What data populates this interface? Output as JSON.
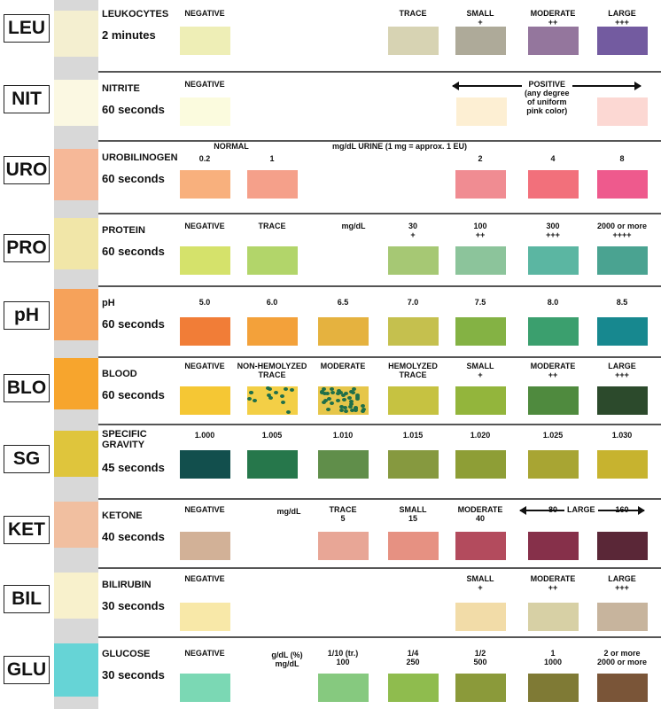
{
  "rows": [
    {
      "abbr": "LEU",
      "name": "LEUKOCYTES",
      "time": "2 minutes",
      "strip_color": "#f4efd0",
      "swatches": [
        {
          "label": "NEGATIVE",
          "color": "#eeeeb6"
        },
        {
          "label": "TRACE",
          "color": "#d7d3b3"
        },
        {
          "label": "SMALL\n+",
          "color": "#aeaa99"
        },
        {
          "label": "MODERATE\n++",
          "color": "#94769d"
        },
        {
          "label": "LARGE\n+++",
          "color": "#735ba0"
        }
      ]
    },
    {
      "abbr": "NIT",
      "name": "NITRITE",
      "time": "60 seconds",
      "strip_color": "#fbf8e2",
      "note": "POSITIVE\n(any degree\nof uniform\npink color)",
      "swatches": [
        {
          "label": "NEGATIVE",
          "color": "#fbfbde"
        },
        {
          "label": "",
          "color": "#fdefd3"
        },
        {
          "label": "",
          "color": "#fcd8d3"
        }
      ]
    },
    {
      "abbr": "URO",
      "name": "UROBILINOGEN",
      "time": "60 seconds",
      "strip_color": "#f6b898",
      "header": "mg/dL URINE (1 mg = approx. 1 EU)",
      "header2": "NORMAL",
      "swatches": [
        {
          "label": "0.2",
          "color": "#f8b07d"
        },
        {
          "label": "1",
          "color": "#f5a08a"
        },
        {
          "label": "2",
          "color": "#f08c92"
        },
        {
          "label": "4",
          "color": "#f2707b"
        },
        {
          "label": "8",
          "color": "#ee5a8d"
        }
      ]
    },
    {
      "abbr": "PRO",
      "name": "PROTEIN",
      "time": "60 seconds",
      "strip_color": "#f1e6a8",
      "unit": "mg/dL",
      "swatches": [
        {
          "label": "NEGATIVE",
          "color": "#d5e26b"
        },
        {
          "label": "TRACE",
          "color": "#b2d56a"
        },
        {
          "label": "30\n+",
          "color": "#a6c874"
        },
        {
          "label": "100\n++",
          "color": "#8cc49b"
        },
        {
          "label": "300\n+++",
          "color": "#5bb6a2"
        },
        {
          "label": "2000 or more\n++++",
          "color": "#4aa391"
        }
      ]
    },
    {
      "abbr": "pH",
      "name": "pH",
      "time": "60 seconds",
      "strip_color": "#f6a25a",
      "swatches": [
        {
          "label": "5.0",
          "color": "#f17d37"
        },
        {
          "label": "6.0",
          "color": "#f3a13a"
        },
        {
          "label": "6.5",
          "color": "#e5b23f"
        },
        {
          "label": "7.0",
          "color": "#c5c04e"
        },
        {
          "label": "7.5",
          "color": "#84b244"
        },
        {
          "label": "8.0",
          "color": "#3b9f6e"
        },
        {
          "label": "8.5",
          "color": "#17888f"
        }
      ]
    },
    {
      "abbr": "BLO",
      "name": "BLOOD",
      "time": "60 seconds",
      "strip_color": "#f7a52d",
      "swatches": [
        {
          "label": "NEGATIVE",
          "color": "#f5c734"
        },
        {
          "label": "NON-HEMOLYZED\nTRACE",
          "color": "#f3cf46",
          "spots": "few"
        },
        {
          "label": "MODERATE",
          "color": "#e6c64a",
          "spots": "many"
        },
        {
          "label": "HEMOLYZED\nTRACE",
          "color": "#c6c241"
        },
        {
          "label": "SMALL\n+",
          "color": "#93b53c"
        },
        {
          "label": "MODERATE\n++",
          "color": "#4f8a3e"
        },
        {
          "label": "LARGE\n+++",
          "color": "#2c4a2c"
        }
      ]
    },
    {
      "abbr": "SG",
      "name": "SPECIFIC\nGRAVITY",
      "time": "45 seconds",
      "strip_color": "#dfc53c",
      "swatches": [
        {
          "label": "1.000",
          "color": "#124f4d"
        },
        {
          "label": "1.005",
          "color": "#26774b"
        },
        {
          "label": "1.010",
          "color": "#608e4a"
        },
        {
          "label": "1.015",
          "color": "#86993f"
        },
        {
          "label": "1.020",
          "color": "#8e9e36"
        },
        {
          "label": "1.025",
          "color": "#a8a533"
        },
        {
          "label": "1.030",
          "color": "#c7b32f"
        }
      ]
    },
    {
      "abbr": "KET",
      "name": "KETONE",
      "time": "40 seconds",
      "strip_color": "#f1bfa0",
      "unit": "mg/dL",
      "note": "LARGE",
      "swatches": [
        {
          "label": "NEGATIVE",
          "color": "#d2b197"
        },
        {
          "label": "TRACE\n5",
          "color": "#e8a696"
        },
        {
          "label": "SMALL\n15",
          "color": "#e69182"
        },
        {
          "label": "MODERATE\n40",
          "color": "#b34b5d"
        },
        {
          "label": "80",
          "color": "#86304a"
        },
        {
          "label": "160",
          "color": "#5a2737"
        }
      ]
    },
    {
      "abbr": "BIL",
      "name": "BILIRUBIN",
      "time": "30 seconds",
      "strip_color": "#f8f1cc",
      "swatches": [
        {
          "label": "NEGATIVE",
          "color": "#f8e8a8"
        },
        {
          "label": "SMALL\n+",
          "color": "#f2dca8"
        },
        {
          "label": "MODERATE\n++",
          "color": "#d7d0a5"
        },
        {
          "label": "LARGE\n+++",
          "color": "#c7b49d"
        }
      ]
    },
    {
      "abbr": "GLU",
      "name": "GLUCOSE",
      "time": "30 seconds",
      "strip_color": "#66d4d6",
      "unit": "g/dL (%)\nmg/dL",
      "swatches": [
        {
          "label": "NEGATIVE",
          "color": "#7bd8b4"
        },
        {
          "label": "1/10 (tr.)\n100",
          "color": "#86c97f"
        },
        {
          "label": "1/4\n250",
          "color": "#8fbc4e"
        },
        {
          "label": "1/2\n500",
          "color": "#8b9a3a"
        },
        {
          "label": "1\n1000",
          "color": "#7f7a35"
        },
        {
          "label": "2 or more\n2000 or more",
          "color": "#7a5538"
        }
      ]
    }
  ]
}
